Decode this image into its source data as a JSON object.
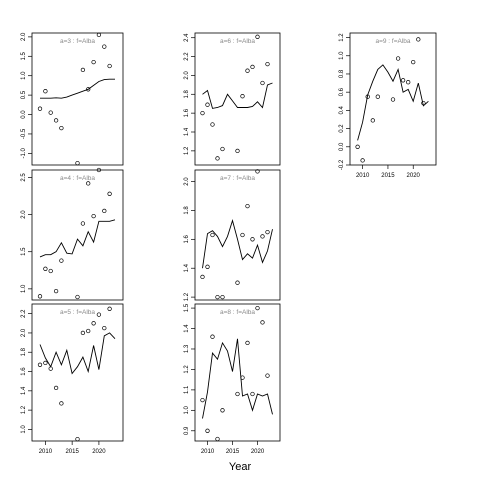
{
  "xlabel": "Year",
  "chart_data": [
    {
      "type": "scatter",
      "title": "a=3 : f=Alba",
      "ylim": [
        -1.3,
        2.1
      ],
      "yticks": [
        -1.0,
        -0.5,
        0.0,
        0.5,
        1.0,
        1.5,
        2.0
      ],
      "ytick_labels": [
        "-1.0",
        "-0.5",
        "0.0",
        "0.5",
        "1.0",
        "1.5",
        "2.0"
      ],
      "xlim": [
        2007.5,
        2024.5
      ],
      "xticks": [
        2010,
        2015,
        2020
      ],
      "xtick_labels": [
        "2010",
        "2015",
        "2020"
      ],
      "show_xticks": false,
      "series": [
        {
          "kind": "points",
          "x": [
            2009,
            2010,
            2011,
            2012,
            2013,
            2016,
            2017,
            2018,
            2019,
            2020,
            2021,
            2022
          ],
          "y": [
            0.15,
            0.6,
            0.05,
            -0.15,
            -0.35,
            -1.25,
            1.15,
            0.65,
            1.35,
            2.05,
            1.75,
            1.25
          ]
        },
        {
          "kind": "line",
          "x": [
            2009,
            2010,
            2011,
            2012,
            2013,
            2014,
            2015,
            2016,
            2017,
            2018,
            2019,
            2020,
            2021,
            2022,
            2023
          ],
          "y": [
            0.42,
            0.42,
            0.42,
            0.43,
            0.42,
            0.45,
            0.5,
            0.55,
            0.6,
            0.65,
            0.75,
            0.85,
            0.9,
            0.91,
            0.91
          ]
        }
      ]
    },
    {
      "type": "scatter",
      "title": "a=4 : f=Alba",
      "ylim": [
        0.85,
        2.6
      ],
      "yticks": [
        1.0,
        1.5,
        2.0,
        2.5
      ],
      "ytick_labels": [
        "1.0",
        "1.5",
        "2.0",
        "2.5"
      ],
      "xlim": [
        2007.5,
        2024.5
      ],
      "xticks": [
        2010,
        2015,
        2020
      ],
      "xtick_labels": [
        "2010",
        "2015",
        "2020"
      ],
      "show_xticks": false,
      "series": [
        {
          "kind": "points",
          "x": [
            2009,
            2010,
            2011,
            2012,
            2013,
            2016,
            2017,
            2018,
            2019,
            2020,
            2021,
            2022
          ],
          "y": [
            0.9,
            1.27,
            1.24,
            0.97,
            1.38,
            0.89,
            1.88,
            2.42,
            1.98,
            2.6,
            2.05,
            2.28
          ]
        },
        {
          "kind": "line",
          "x": [
            2009,
            2010,
            2011,
            2012,
            2013,
            2014,
            2015,
            2016,
            2017,
            2018,
            2019,
            2020,
            2021,
            2022,
            2023
          ],
          "y": [
            1.43,
            1.46,
            1.46,
            1.5,
            1.62,
            1.48,
            1.47,
            1.67,
            1.58,
            1.77,
            1.63,
            1.91,
            1.91,
            1.91,
            1.93
          ]
        }
      ]
    },
    {
      "type": "scatter",
      "title": "a=5 : f=Alba",
      "ylim": [
        0.88,
        2.3
      ],
      "yticks": [
        1.0,
        1.2,
        1.4,
        1.6,
        1.8,
        2.0,
        2.2
      ],
      "ytick_labels": [
        "1.0",
        "1.2",
        "1.4",
        "1.6",
        "1.8",
        "2.0",
        "2.2"
      ],
      "xlim": [
        2007.5,
        2024.5
      ],
      "xticks": [
        2010,
        2015,
        2020
      ],
      "xtick_labels": [
        "2010",
        "2015",
        "2020"
      ],
      "show_xticks": true,
      "series": [
        {
          "kind": "points",
          "x": [
            2009,
            2010,
            2011,
            2012,
            2013,
            2016,
            2017,
            2018,
            2019,
            2020,
            2021,
            2022
          ],
          "y": [
            1.67,
            1.69,
            1.63,
            1.43,
            1.27,
            0.9,
            2.0,
            2.02,
            2.1,
            2.19,
            2.05,
            2.25
          ]
        },
        {
          "kind": "line",
          "x": [
            2009,
            2010,
            2011,
            2012,
            2013,
            2014,
            2015,
            2016,
            2017,
            2018,
            2019,
            2020,
            2021,
            2022,
            2023
          ],
          "y": [
            1.88,
            1.74,
            1.65,
            1.8,
            1.67,
            1.82,
            1.58,
            1.65,
            1.75,
            1.6,
            1.87,
            1.62,
            1.97,
            2.0,
            1.94
          ]
        }
      ]
    },
    {
      "type": "scatter",
      "title": "a=6 : f=Alba",
      "ylim": [
        1.05,
        2.45
      ],
      "yticks": [
        1.2,
        1.4,
        1.6,
        1.8,
        2.0,
        2.2,
        2.4
      ],
      "ytick_labels": [
        "1.2",
        "1.4",
        "1.6",
        "1.8",
        "2.0",
        "2.2",
        "2.4"
      ],
      "xlim": [
        2007.5,
        2024.5
      ],
      "xticks": [
        2010,
        2015,
        2020
      ],
      "xtick_labels": [
        "2010",
        "2015",
        "2020"
      ],
      "show_xticks": false,
      "series": [
        {
          "kind": "points",
          "x": [
            2009,
            2010,
            2011,
            2012,
            2013,
            2016,
            2017,
            2018,
            2019,
            2020,
            2021,
            2022
          ],
          "y": [
            1.6,
            1.69,
            1.48,
            1.12,
            1.22,
            1.2,
            1.78,
            2.05,
            2.09,
            2.41,
            1.92,
            2.12
          ]
        },
        {
          "kind": "line",
          "x": [
            2009,
            2010,
            2011,
            2012,
            2013,
            2014,
            2015,
            2016,
            2017,
            2018,
            2019,
            2020,
            2021,
            2022,
            2023
          ],
          "y": [
            1.8,
            1.84,
            1.65,
            1.66,
            1.68,
            1.8,
            1.73,
            1.66,
            1.66,
            1.66,
            1.67,
            1.72,
            1.66,
            1.9,
            1.92
          ]
        }
      ]
    },
    {
      "type": "scatter",
      "title": "a=7 : f=Alba",
      "ylim": [
        1.18,
        2.08
      ],
      "yticks": [
        1.2,
        1.4,
        1.6,
        1.8,
        2.0
      ],
      "ytick_labels": [
        "1.2",
        "1.4",
        "1.6",
        "1.8",
        "2.0"
      ],
      "xlim": [
        2007.5,
        2024.5
      ],
      "xticks": [
        2010,
        2015,
        2020
      ],
      "xtick_labels": [
        "2010",
        "2015",
        "2020"
      ],
      "show_xticks": false,
      "series": [
        {
          "kind": "points",
          "x": [
            2009,
            2010,
            2011,
            2012,
            2013,
            2016,
            2017,
            2018,
            2019,
            2020,
            2021,
            2022
          ],
          "y": [
            1.34,
            1.41,
            1.63,
            1.2,
            1.2,
            1.3,
            1.63,
            1.83,
            1.6,
            2.07,
            1.62,
            1.65
          ]
        },
        {
          "kind": "line",
          "x": [
            2009,
            2010,
            2011,
            2012,
            2013,
            2014,
            2015,
            2016,
            2017,
            2018,
            2019,
            2020,
            2021,
            2022,
            2023
          ],
          "y": [
            1.4,
            1.64,
            1.66,
            1.62,
            1.55,
            1.62,
            1.73,
            1.6,
            1.46,
            1.5,
            1.47,
            1.56,
            1.44,
            1.52,
            1.67
          ]
        }
      ]
    },
    {
      "type": "scatter",
      "title": "a=8 : f=Alba",
      "ylim": [
        0.85,
        1.52
      ],
      "yticks": [
        0.9,
        1.0,
        1.1,
        1.2,
        1.3,
        1.4,
        1.5
      ],
      "ytick_labels": [
        "0.9",
        "1.0",
        "1.1",
        "1.2",
        "1.3",
        "1.4",
        "1.5"
      ],
      "xlim": [
        2007.5,
        2024.5
      ],
      "xticks": [
        2010,
        2015,
        2020
      ],
      "xtick_labels": [
        "2010",
        "2015",
        "2020"
      ],
      "show_xticks": true,
      "series": [
        {
          "kind": "points",
          "x": [
            2009,
            2010,
            2011,
            2012,
            2013,
            2016,
            2017,
            2018,
            2019,
            2020,
            2021,
            2022
          ],
          "y": [
            1.05,
            0.9,
            1.36,
            0.86,
            1.0,
            1.08,
            1.16,
            1.33,
            1.08,
            1.5,
            1.43,
            1.17
          ]
        },
        {
          "kind": "line",
          "x": [
            2009,
            2010,
            2011,
            2012,
            2013,
            2014,
            2015,
            2016,
            2017,
            2018,
            2019,
            2020,
            2021,
            2022,
            2023
          ],
          "y": [
            0.96,
            1.09,
            1.28,
            1.25,
            1.33,
            1.29,
            1.19,
            1.35,
            1.07,
            1.08,
            1.0,
            1.08,
            1.07,
            1.08,
            0.98
          ]
        }
      ]
    },
    {
      "type": "scatter",
      "title": "a=9 : f=Alba",
      "ylim": [
        -0.2,
        1.25
      ],
      "yticks": [
        -0.2,
        0.0,
        0.2,
        0.4,
        0.6,
        0.8,
        1.0,
        1.2
      ],
      "ytick_labels": [
        "-0.2",
        "0.0",
        "0.2",
        "0.4",
        "0.6",
        "0.8",
        "1.0",
        "1.2"
      ],
      "xlim": [
        2007.5,
        2024.5
      ],
      "xticks": [
        2010,
        2015,
        2020
      ],
      "xtick_labels": [
        "2010",
        "2015",
        "2020"
      ],
      "show_xticks": true,
      "series": [
        {
          "kind": "points",
          "x": [
            2009,
            2010,
            2011,
            2012,
            2013,
            2016,
            2017,
            2018,
            2019,
            2020,
            2021,
            2022
          ],
          "y": [
            0.0,
            -0.15,
            0.55,
            0.29,
            0.55,
            0.52,
            0.97,
            0.73,
            0.71,
            0.93,
            1.18,
            0.48
          ]
        },
        {
          "kind": "line",
          "x": [
            2009,
            2010,
            2011,
            2012,
            2013,
            2014,
            2015,
            2016,
            2017,
            2018,
            2019,
            2020,
            2021,
            2022,
            2023
          ],
          "y": [
            0.07,
            0.27,
            0.57,
            0.72,
            0.85,
            0.9,
            0.82,
            0.72,
            0.85,
            0.6,
            0.63,
            0.5,
            0.7,
            0.45,
            0.5
          ]
        }
      ]
    }
  ]
}
